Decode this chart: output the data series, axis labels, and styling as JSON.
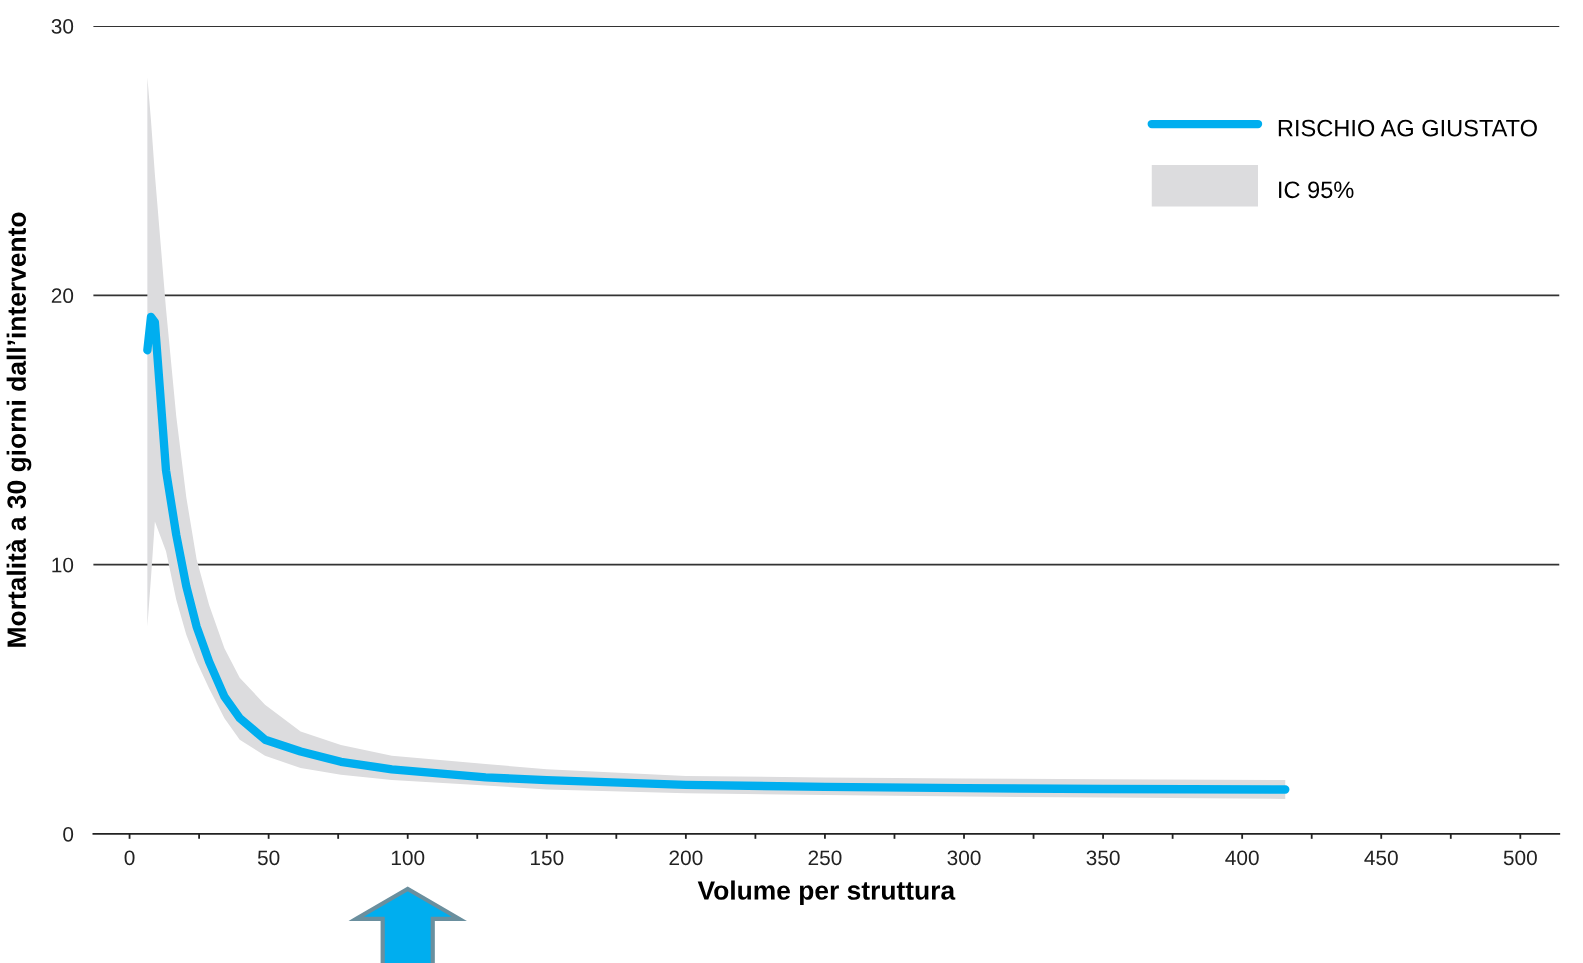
{
  "chart_data": {
    "type": "line",
    "xlabel": "Volume per struttura",
    "ylabel": "Mortalità a 30 giorni dall’intervento",
    "x": [
      6.4,
      7.7,
      9.1,
      13.1,
      16.8,
      20.4,
      24.1,
      28.6,
      34.1,
      39.6,
      48.7,
      61.5,
      76,
      94.3,
      128,
      150,
      200,
      250,
      300,
      350,
      415.5
    ],
    "series": [
      {
        "name": "RISCHIO AG GIUSTATO",
        "color": "#00aeef",
        "values": [
          17.96,
          19.2,
          19.0,
          13.5,
          11.1,
          9.2,
          7.7,
          6.4,
          5.1,
          4.3,
          3.5,
          3.06,
          2.68,
          2.4,
          2.1,
          2.0,
          1.82,
          1.75,
          1.7,
          1.67,
          1.65
        ],
        "lower": [
          7.7,
          9.5,
          11.6,
          10.5,
          8.7,
          7.4,
          6.4,
          5.4,
          4.3,
          3.5,
          2.9,
          2.45,
          2.2,
          2.0,
          1.8,
          1.65,
          1.51,
          1.45,
          1.39,
          1.35,
          1.3
        ],
        "upper": [
          28.1,
          26.5,
          24.5,
          19.5,
          15.5,
          12.5,
          10.2,
          8.5,
          6.9,
          5.8,
          4.8,
          3.8,
          3.3,
          2.9,
          2.6,
          2.4,
          2.15,
          2.1,
          2.06,
          2.03,
          2.0
        ]
      }
    ],
    "annotations": [
      "IC 95%"
    ],
    "xlim": [
      -13,
      514
    ],
    "ylim": [
      0,
      30
    ],
    "xticks": [
      0,
      {
        "value": 25,
        "label": null
      },
      50,
      {
        "value": 75,
        "label": null
      },
      100,
      {
        "value": 125,
        "label": null
      },
      150,
      {
        "value": 175,
        "label": null
      },
      200,
      {
        "value": 225,
        "label": null
      },
      250,
      {
        "value": 275,
        "label": null
      },
      300,
      {
        "value": 325,
        "label": null
      },
      350,
      {
        "value": 375,
        "label": null
      },
      400,
      {
        "value": 425,
        "label": null
      },
      450,
      {
        "value": 475,
        "label": null
      },
      500
    ],
    "yticks": [
      0,
      10,
      20,
      30
    ],
    "grid": "y",
    "legend": "top right",
    "marker": "none",
    "line_style": "solid"
  }
}
